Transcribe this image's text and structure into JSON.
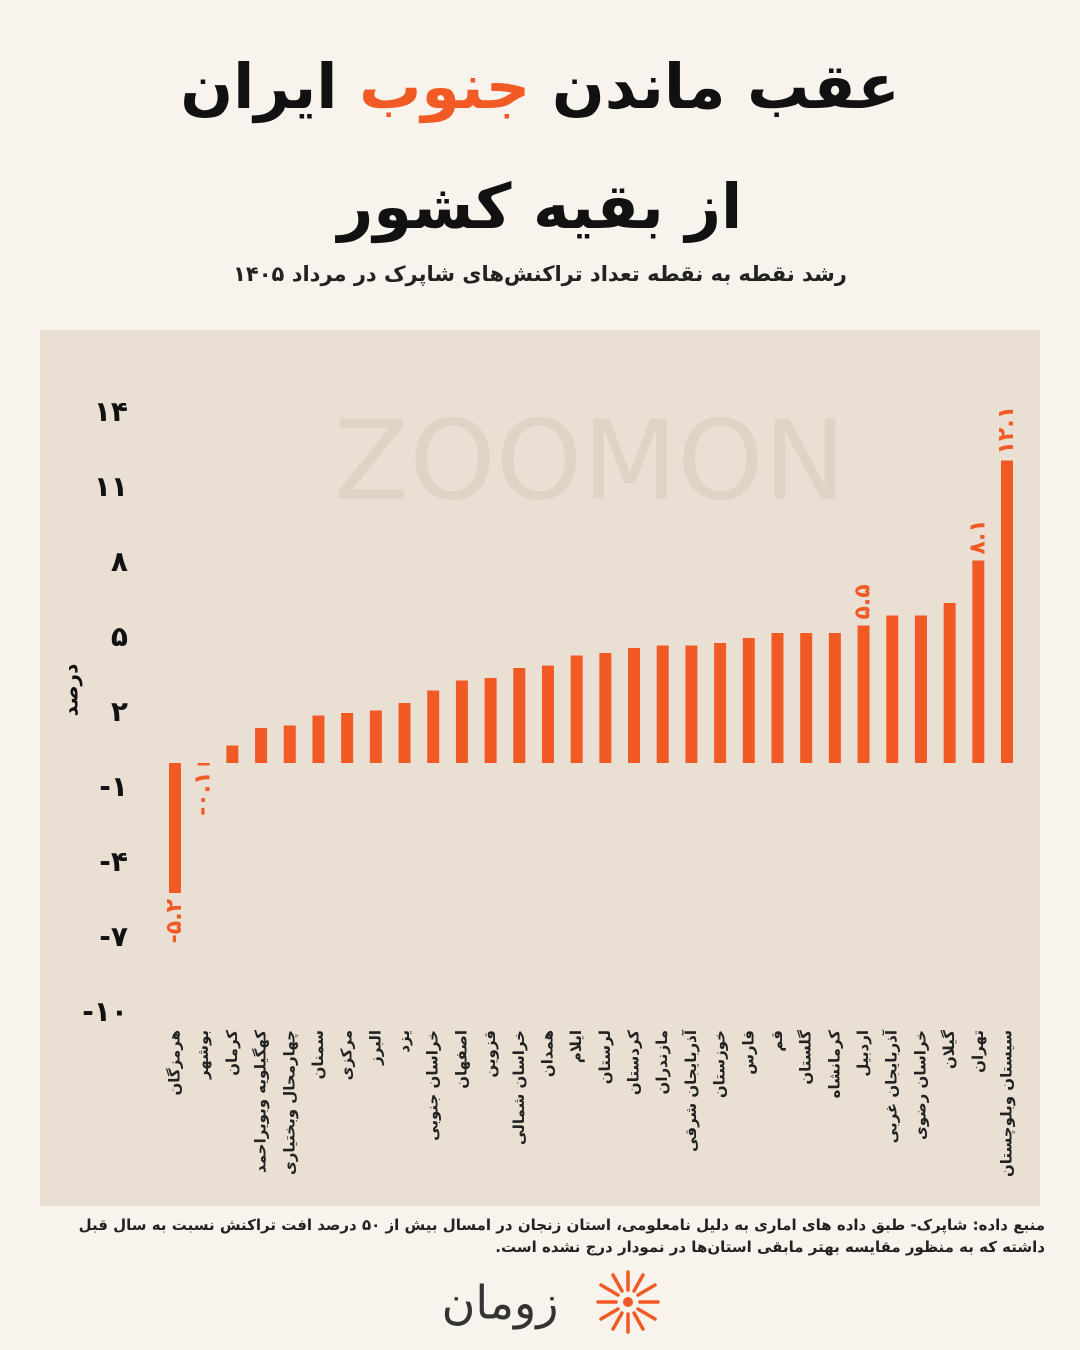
{
  "chart_data": {
    "type": "bar",
    "title": {
      "before": "عقب ماندن",
      "highlight": "جنوب",
      "after": "ایران",
      "line2": "از بقیه کشور"
    },
    "subtitle": "رشد نقطه به نقطه تعداد تراکنش‌های شاپرک در مرداد ۱۴۰۵",
    "ylabel": "درصد",
    "watermark": "ZOOMON",
    "categories": [
      "هرمزگان",
      "بوشهر",
      "کرمان",
      "کهگیلویه وبویراحمد",
      "چهارمحال وبختیاری",
      "سمنان",
      "مرکزی",
      "البرز",
      "یزد",
      "خراسان جنوبی",
      "اصفهان",
      "قزوین",
      "خراسان شمالی",
      "همدان",
      "ایلام",
      "لرستان",
      "کردستان",
      "مازندران",
      "آذربایجان شرقی",
      "خوزستان",
      "فارس",
      "قم",
      "گلستان",
      "کرمانشاه",
      "اردبیل",
      "آذربایجان غربی",
      "خراسان رضوی",
      "گیلان",
      "تهران",
      "سیستان وبلوچستان"
    ],
    "values": [
      -5.2,
      -0.1,
      0.7,
      1.4,
      1.5,
      1.9,
      2.0,
      2.1,
      2.4,
      2.9,
      3.3,
      3.4,
      3.8,
      3.9,
      4.3,
      4.4,
      4.6,
      4.7,
      4.7,
      4.8,
      5.0,
      5.2,
      5.2,
      5.2,
      5.5,
      5.9,
      5.9,
      6.4,
      8.1,
      12.1
    ],
    "value_labels": [
      "-۵.۲",
      "-۰.۱",
      null,
      null,
      null,
      null,
      null,
      null,
      null,
      null,
      null,
      null,
      null,
      null,
      null,
      null,
      null,
      null,
      null,
      null,
      null,
      null,
      null,
      null,
      "۵.۵",
      null,
      null,
      null,
      "۸.۱",
      "۱۲.۱"
    ],
    "color": "#f15a24",
    "ylim": [
      -10,
      14
    ],
    "yticks": [
      {
        "value": 14,
        "label": "۱۴"
      },
      {
        "value": 11,
        "label": "۱۱"
      },
      {
        "value": 8,
        "label": "۸"
      },
      {
        "value": 5,
        "label": "۵"
      },
      {
        "value": 2,
        "label": "۲"
      },
      {
        "value": -1,
        "label": "-۱"
      },
      {
        "value": -4,
        "label": "-۴"
      },
      {
        "value": -7,
        "label": "-۷"
      },
      {
        "value": -10,
        "label": "-۱۰"
      }
    ],
    "grid": false,
    "source": "منبع داده: شاپرک- طبق داده های اماری به دلیل نامعلومی، استان زنجان در امسال بیش از ۵۰ درصد افت تراکنش  نسبت به سال قبل داشته که به منظور مقایسه بهتر مابقی استان‌ها در نمودار درج نشده است.",
    "brand": "زومان"
  }
}
